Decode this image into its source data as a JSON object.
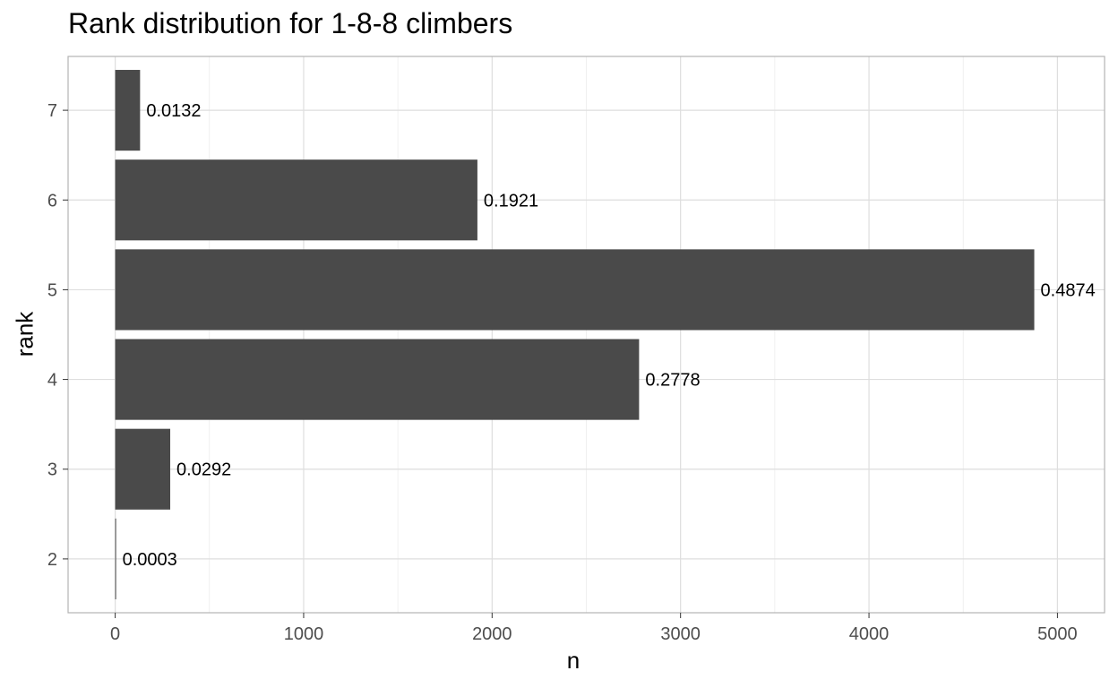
{
  "chart_data": {
    "type": "bar",
    "orientation": "horizontal",
    "title": "Rank distribution for 1-8-8 climbers",
    "xlabel": "n",
    "ylabel": "rank",
    "categories": [
      "2",
      "3",
      "4",
      "5",
      "6",
      "7"
    ],
    "values": [
      3,
      292,
      2780,
      4877,
      1922,
      132
    ],
    "labels": [
      "0.0003",
      "0.0292",
      "0.2778",
      "0.4874",
      "0.1921",
      "0.0132"
    ],
    "xticks": [
      "0",
      "1000",
      "2000",
      "3000",
      "4000",
      "5000"
    ],
    "xlim": [
      -250,
      5250
    ],
    "grid": true,
    "bar_color": "#4a4a4a"
  }
}
